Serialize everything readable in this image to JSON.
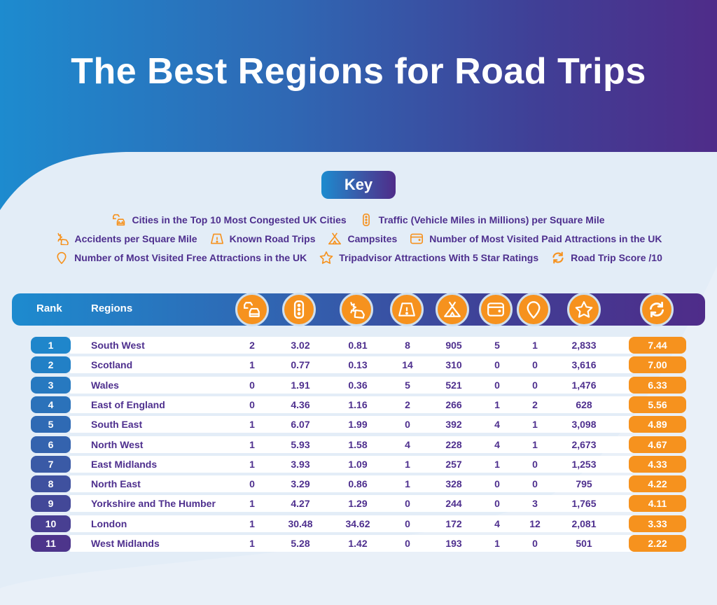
{
  "title": "The Best Regions for Road Trips",
  "key": {
    "label": "Key",
    "rows": [
      [
        {
          "icon": "cars-congestion-icon",
          "label": "Cities in the Top 10 Most Congested UK Cities"
        },
        {
          "icon": "traffic-light-icon",
          "label": "Traffic (Vehicle Miles in Millions) per Square Mile"
        }
      ],
      [
        {
          "icon": "car-crash-icon",
          "label": "Accidents per Square Mile"
        },
        {
          "icon": "road-warning-icon",
          "label": "Known Road Trips"
        },
        {
          "icon": "tent-icon",
          "label": "Campsites"
        },
        {
          "icon": "wallet-icon",
          "label": "Number of Most Visited Paid Attractions in the UK"
        }
      ],
      [
        {
          "icon": "map-pin-icon",
          "label": "Number of Most Visited Free Attractions in the UK"
        },
        {
          "icon": "star-icon",
          "label": "Tripadvisor Attractions With 5 Star Ratings"
        },
        {
          "icon": "refresh-icon",
          "label": "Road Trip Score /10"
        }
      ]
    ]
  },
  "table": {
    "headers": {
      "rank": "Rank",
      "regions": "Regions"
    },
    "column_icons": [
      "cars-congestion-icon",
      "traffic-light-icon",
      "car-crash-icon",
      "road-warning-icon",
      "tent-icon",
      "wallet-icon",
      "map-pin-icon",
      "star-icon",
      "refresh-icon"
    ],
    "rows": [
      {
        "rank": "1",
        "region": "South West",
        "congested": "2",
        "traffic": "3.02",
        "accidents": "0.81",
        "road_trips": "8",
        "campsites": "905",
        "paid": "5",
        "free": "1",
        "tripadvisor": "2,833",
        "score": "7.44"
      },
      {
        "rank": "2",
        "region": "Scotland",
        "congested": "1",
        "traffic": "0.77",
        "accidents": "0.13",
        "road_trips": "14",
        "campsites": "310",
        "paid": "0",
        "free": "0",
        "tripadvisor": "3,616",
        "score": "7.00"
      },
      {
        "rank": "3",
        "region": "Wales",
        "congested": "0",
        "traffic": "1.91",
        "accidents": "0.36",
        "road_trips": "5",
        "campsites": "521",
        "paid": "0",
        "free": "0",
        "tripadvisor": "1,476",
        "score": "6.33"
      },
      {
        "rank": "4",
        "region": "East of England",
        "congested": "0",
        "traffic": "4.36",
        "accidents": "1.16",
        "road_trips": "2",
        "campsites": "266",
        "paid": "1",
        "free": "2",
        "tripadvisor": "628",
        "score": "5.56"
      },
      {
        "rank": "5",
        "region": "South East",
        "congested": "1",
        "traffic": "6.07",
        "accidents": "1.99",
        "road_trips": "0",
        "campsites": "392",
        "paid": "4",
        "free": "1",
        "tripadvisor": "3,098",
        "score": "4.89"
      },
      {
        "rank": "6",
        "region": "North West",
        "congested": "1",
        "traffic": "5.93",
        "accidents": "1.58",
        "road_trips": "4",
        "campsites": "228",
        "paid": "4",
        "free": "1",
        "tripadvisor": "2,673",
        "score": "4.67"
      },
      {
        "rank": "7",
        "region": "East Midlands",
        "congested": "1",
        "traffic": "3.93",
        "accidents": "1.09",
        "road_trips": "1",
        "campsites": "257",
        "paid": "1",
        "free": "0",
        "tripadvisor": "1,253",
        "score": "4.33"
      },
      {
        "rank": "8",
        "region": "North East",
        "congested": "0",
        "traffic": "3.29",
        "accidents": "0.86",
        "road_trips": "1",
        "campsites": "328",
        "paid": "0",
        "free": "0",
        "tripadvisor": "795",
        "score": "4.22"
      },
      {
        "rank": "9",
        "region": "Yorkshire and The Humber",
        "congested": "1",
        "traffic": "4.27",
        "accidents": "1.29",
        "road_trips": "0",
        "campsites": "244",
        "paid": "0",
        "free": "3",
        "tripadvisor": "1,765",
        "score": "4.11"
      },
      {
        "rank": "10",
        "region": "London",
        "congested": "1",
        "traffic": "30.48",
        "accidents": "34.62",
        "road_trips": "0",
        "campsites": "172",
        "paid": "4",
        "free": "12",
        "tripadvisor": "2,081",
        "score": "3.33"
      },
      {
        "rank": "11",
        "region": "West Midlands",
        "congested": "1",
        "traffic": "5.28",
        "accidents": "1.42",
        "road_trips": "0",
        "campsites": "193",
        "paid": "1",
        "free": "0",
        "tripadvisor": "501",
        "score": "2.22"
      }
    ]
  },
  "colors": {
    "accent_orange": "#f6921e",
    "text_purple": "#4e2f8e",
    "gradient_start": "#1d8bcf",
    "gradient_end": "#4f2c89",
    "rank_pill_colors": [
      "#1f86cb",
      "#2280c6",
      "#2779c0",
      "#2b72ba",
      "#2f6ab4",
      "#3463ae",
      "#3a5aa6",
      "#3f519f",
      "#434898",
      "#483f92",
      "#4d358b"
    ]
  },
  "chart_data": {
    "type": "table",
    "title": "The Best Regions for Road Trips",
    "columns": [
      "Rank",
      "Regions",
      "Cities in the Top 10 Most Congested UK Cities",
      "Traffic (Vehicle Miles in Millions) per Square Mile",
      "Accidents per Square Mile",
      "Known Road Trips",
      "Campsites",
      "Number of Most Visited Paid Attractions in the UK",
      "Number of Most Visited Free Attractions in the UK",
      "Tripadvisor Attractions With 5 Star Ratings",
      "Road Trip Score /10"
    ],
    "rows": [
      [
        1,
        "South West",
        2,
        3.02,
        0.81,
        8,
        905,
        5,
        1,
        2833,
        7.44
      ],
      [
        2,
        "Scotland",
        1,
        0.77,
        0.13,
        14,
        310,
        0,
        0,
        3616,
        7.0
      ],
      [
        3,
        "Wales",
        0,
        1.91,
        0.36,
        5,
        521,
        0,
        0,
        1476,
        6.33
      ],
      [
        4,
        "East of England",
        0,
        4.36,
        1.16,
        2,
        266,
        1,
        2,
        628,
        5.56
      ],
      [
        5,
        "South East",
        1,
        6.07,
        1.99,
        0,
        392,
        4,
        1,
        3098,
        4.89
      ],
      [
        6,
        "North West",
        1,
        5.93,
        1.58,
        4,
        228,
        4,
        1,
        2673,
        4.67
      ],
      [
        7,
        "East Midlands",
        1,
        3.93,
        1.09,
        1,
        257,
        1,
        0,
        1253,
        4.33
      ],
      [
        8,
        "North East",
        0,
        3.29,
        0.86,
        1,
        328,
        0,
        0,
        795,
        4.22
      ],
      [
        9,
        "Yorkshire and The Humber",
        1,
        4.27,
        1.29,
        0,
        244,
        0,
        3,
        1765,
        4.11
      ],
      [
        10,
        "London",
        1,
        30.48,
        34.62,
        0,
        172,
        4,
        12,
        2081,
        3.33
      ],
      [
        11,
        "West Midlands",
        1,
        5.28,
        1.42,
        0,
        193,
        1,
        0,
        501,
        2.22
      ]
    ]
  }
}
